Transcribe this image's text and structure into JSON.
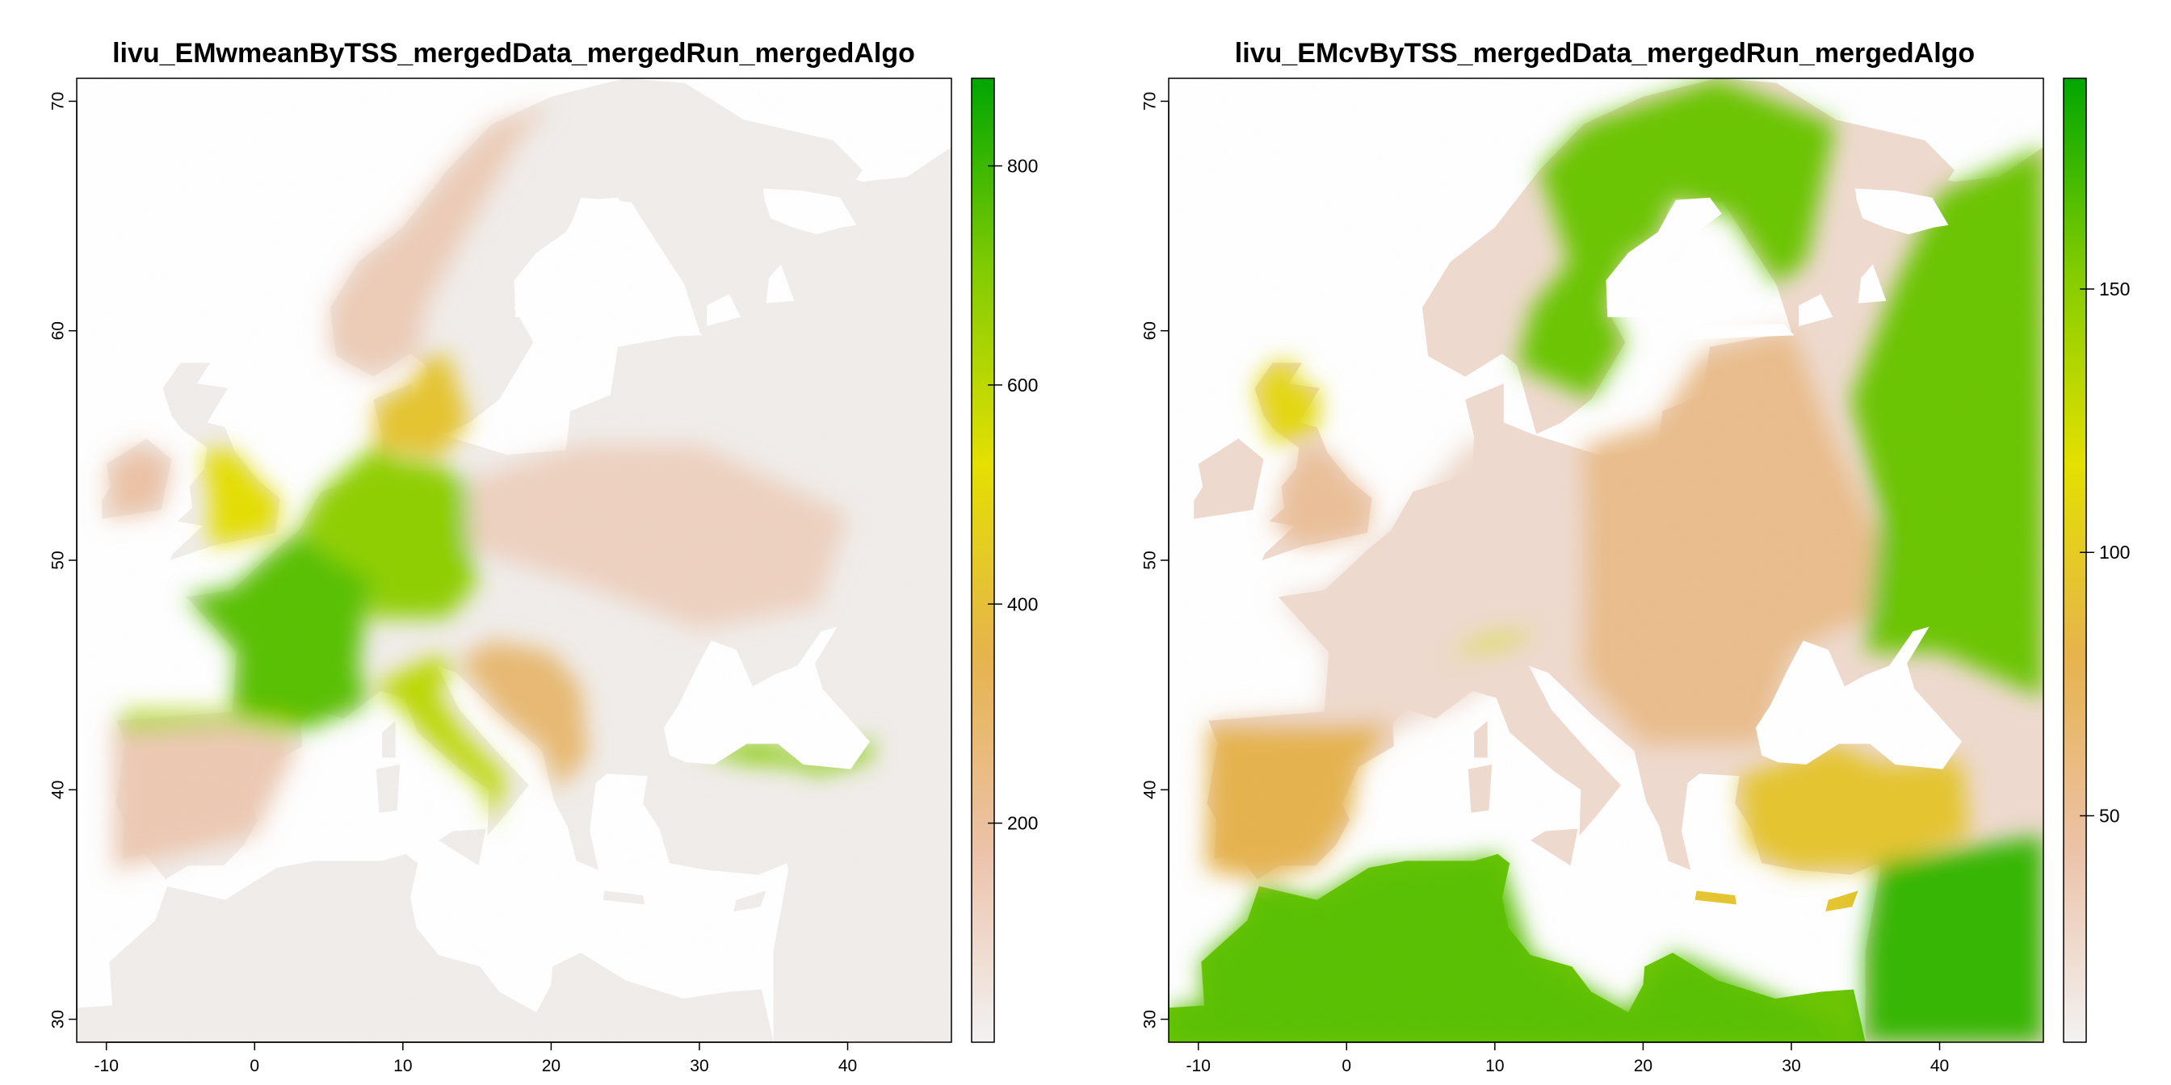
{
  "chart_data": [
    {
      "type": "heatmap",
      "title": "livu_EMwmeanByTSS_mergedData_mergedRun_mergedAlgo",
      "xlabel": "",
      "ylabel": "",
      "xlim": [
        -12,
        47
      ],
      "ylim": [
        29,
        71
      ],
      "x_ticks": [
        "-10",
        "0",
        "10",
        "20",
        "30",
        "40"
      ],
      "x_tick_values": [
        -10,
        0,
        10,
        20,
        30,
        40
      ],
      "y_ticks": [
        "30",
        "40",
        "50",
        "60",
        "70"
      ],
      "y_tick_values": [
        30,
        40,
        50,
        60,
        70
      ],
      "colorbar": {
        "range": [
          0,
          880
        ],
        "ticks": [
          "200",
          "400",
          "600",
          "800"
        ],
        "tick_values": [
          200,
          400,
          600,
          800
        ],
        "colors": [
          "#f2f2f2",
          "#ecc2a8",
          "#e6b34d",
          "#e4e000",
          "#82cc00",
          "#00a600"
        ]
      },
      "regions": [
        {
          "name": "background-land",
          "value": 20
        },
        {
          "name": "france",
          "value": 760
        },
        {
          "name": "germany-benelux",
          "value": 680
        },
        {
          "name": "great-britain",
          "value": 520
        },
        {
          "name": "ireland",
          "value": 180
        },
        {
          "name": "iberia",
          "value": 150
        },
        {
          "name": "northern-spain",
          "value": 620
        },
        {
          "name": "italy",
          "value": 600
        },
        {
          "name": "balkans",
          "value": 280
        },
        {
          "name": "eastern-europe",
          "value": 120
        },
        {
          "name": "black-sea-coast",
          "value": 700
        },
        {
          "name": "denmark-south-sweden",
          "value": 420
        },
        {
          "name": "scandinavia-coast",
          "value": 140
        }
      ]
    },
    {
      "type": "heatmap",
      "title": "livu_EMcvByTSS_mergedData_mergedRun_mergedAlgo",
      "xlabel": "",
      "ylabel": "",
      "xlim": [
        -12,
        47
      ],
      "ylim": [
        29,
        71
      ],
      "x_ticks": [
        "-10",
        "0",
        "10",
        "20",
        "30",
        "40"
      ],
      "x_tick_values": [
        -10,
        0,
        10,
        20,
        30,
        40
      ],
      "y_ticks": [
        "30",
        "40",
        "50",
        "60",
        "70"
      ],
      "y_tick_values": [
        30,
        40,
        50,
        60,
        70
      ],
      "colorbar": {
        "range": [
          7,
          190
        ],
        "ticks": [
          "50",
          "100",
          "150"
        ],
        "tick_values": [
          50,
          100,
          150
        ],
        "colors": [
          "#f2f2f2",
          "#ecc2a8",
          "#e6b34d",
          "#e4e000",
          "#82cc00",
          "#00a600"
        ]
      },
      "regions": [
        {
          "name": "western-europe",
          "value": 25
        },
        {
          "name": "central-europe",
          "value": 55
        },
        {
          "name": "iberia",
          "value": 80
        },
        {
          "name": "north-africa",
          "value": 165
        },
        {
          "name": "russia-east",
          "value": 160
        },
        {
          "name": "scandinavia",
          "value": 160
        },
        {
          "name": "anatolia",
          "value": 95
        },
        {
          "name": "middle-east",
          "value": 175
        },
        {
          "name": "alps",
          "value": 120
        },
        {
          "name": "great-britain",
          "value": 50
        },
        {
          "name": "scotland",
          "value": 110
        }
      ]
    }
  ]
}
